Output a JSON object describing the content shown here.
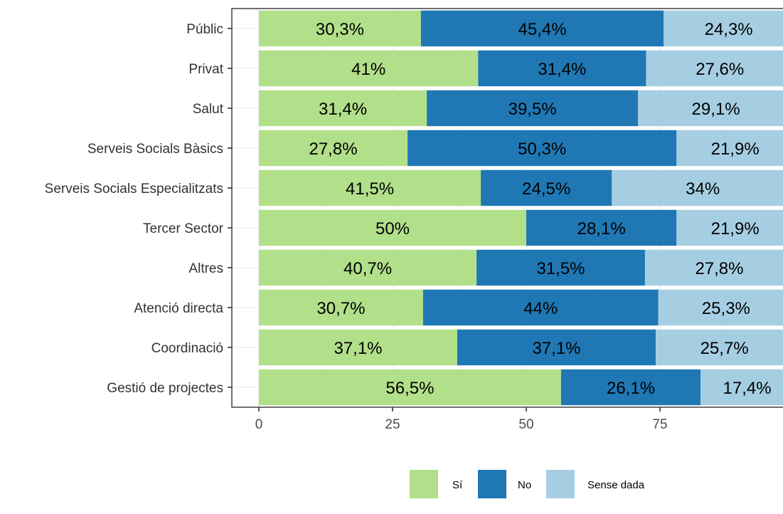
{
  "chart_data": {
    "type": "bar",
    "orientation": "horizontal",
    "stacked": true,
    "categories": [
      "Públic",
      "Privat",
      "Salut",
      "Serveis Socials Bàsics",
      "Serveis Socials Especialitzats",
      "Tercer Sector",
      "Altres",
      "Atenció directa",
      "Coordinació",
      "Gestió de projectes"
    ],
    "series": [
      {
        "name": "Sí",
        "color": "#b2df8a",
        "values": [
          30.3,
          41,
          31.4,
          27.8,
          41.5,
          50,
          40.7,
          30.7,
          37.1,
          56.5
        ],
        "labels": [
          "30,3%",
          "41%",
          "31,4%",
          "27,8%",
          "41,5%",
          "50%",
          "40,7%",
          "30,7%",
          "37,1%",
          "56,5%"
        ]
      },
      {
        "name": "No",
        "color": "#1f78b4",
        "values": [
          45.4,
          31.4,
          39.5,
          50.3,
          24.5,
          28.1,
          31.5,
          44,
          37.1,
          26.1
        ],
        "labels": [
          "45,4%",
          "31,4%",
          "39,5%",
          "50,3%",
          "24,5%",
          "28,1%",
          "31,5%",
          "44%",
          "37,1%",
          "26,1%"
        ]
      },
      {
        "name": "Sense dada",
        "color": "#a6cee3",
        "values": [
          24.3,
          27.6,
          29.1,
          21.9,
          34,
          21.9,
          27.8,
          25.3,
          25.7,
          17.4
        ],
        "labels": [
          "24,3%",
          "27,6%",
          "29,1%",
          "21,9%",
          "34%",
          "21,9%",
          "27,8%",
          "25,3%",
          "25,7%",
          "17,4%"
        ]
      }
    ],
    "x_ticks": [
      0,
      25,
      50,
      75
    ],
    "xlim": [
      -2.5,
      100
    ],
    "grid": true,
    "legend_position": "bottom",
    "title": "",
    "xlabel": "",
    "ylabel": ""
  }
}
